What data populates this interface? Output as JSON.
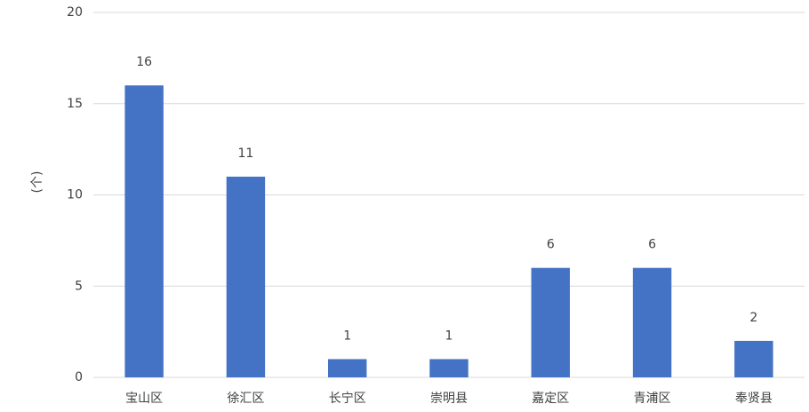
{
  "chart_data": {
    "type": "bar",
    "y_label": "(个)",
    "categories": [
      "宝山区",
      "徐汇区",
      "长宁区",
      "崇明县",
      "嘉定区",
      "青浦区",
      "奉贤县"
    ],
    "values": [
      16,
      11,
      1,
      1,
      6,
      6,
      2
    ],
    "color": "#4472c4",
    "ylim": [
      0,
      20
    ],
    "yticks": [
      0,
      5,
      10,
      15,
      20
    ],
    "grid": true
  }
}
